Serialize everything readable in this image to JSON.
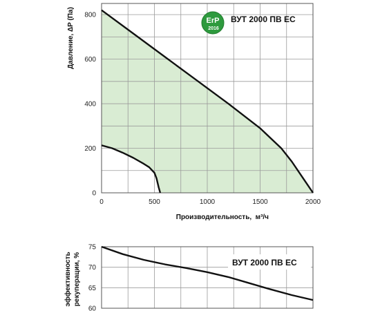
{
  "badge": {
    "main": "ErP",
    "year": "2016"
  },
  "chart_data": [
    {
      "type": "line",
      "title": "ВУТ 2000 ПВ ЕС",
      "xlabel": "Производительность,  м³/ч",
      "ylabel": "Давление, ΔP (Па)",
      "xlim": [
        0,
        2000
      ],
      "ylim": [
        0,
        850
      ],
      "x_ticks": [
        0,
        500,
        1000,
        1500,
        2000
      ],
      "y_ticks": [
        0,
        200,
        400,
        600,
        800
      ],
      "grid": true,
      "legend": "none",
      "colors": {
        "fill": "#d9ecd3",
        "line": "#111111",
        "grid": "#9a9a9a"
      },
      "series": [
        {
          "x": [
            0,
            300,
            600,
            900,
            1200,
            1500,
            1700,
            1800,
            1900,
            1950,
            2000
          ],
          "y": [
            820,
            715,
            610,
            505,
            400,
            290,
            200,
            140,
            70,
            35,
            0
          ]
        },
        {
          "x": [
            0,
            100,
            200,
            300,
            400,
            450,
            500,
            520,
            540,
            555
          ],
          "y": [
            213,
            200,
            180,
            157,
            130,
            115,
            90,
            65,
            25,
            0
          ]
        }
      ]
    },
    {
      "type": "line",
      "title": "ВУТ 2000 ПВ ЕС",
      "xlabel": "",
      "ylabel": "эффективность рекуперации, %",
      "xlim": [
        0,
        2000
      ],
      "ylim": [
        60,
        75
      ],
      "y_ticks": [
        60,
        65,
        70,
        75
      ],
      "grid": true,
      "legend": "none",
      "series": [
        {
          "x": [
            0,
            200,
            400,
            600,
            800,
            1000,
            1200,
            1400,
            1600,
            1800,
            2000
          ],
          "y": [
            75,
            73.2,
            71.8,
            70.7,
            69.8,
            68.8,
            67.6,
            66.1,
            64.6,
            63.2,
            62
          ]
        }
      ]
    }
  ]
}
